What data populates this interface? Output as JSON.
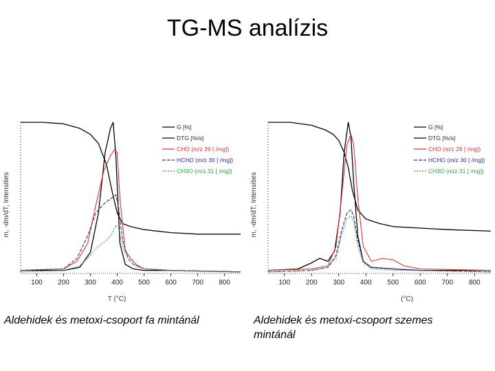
{
  "title": "TG-MS analízis",
  "captions": [
    "Aldehidek és metoxi-csoport fa mintánál",
    "Aldehidek és metoxi-csoport szemes mintánál"
  ],
  "colors": {
    "G": "#000000",
    "DTG": "#000000",
    "CHO": "#e03030",
    "HCHO": "#2a2a8a",
    "CH3O": "#2e9e3e",
    "axis": "#000000"
  },
  "chart_data": [
    {
      "type": "line",
      "title": "",
      "xlabel": "T (°C)",
      "ylabel": "m, -dm/dT, Intensities",
      "xlim": [
        40,
        860
      ],
      "ylim": [
        0,
        100
      ],
      "xticks": [
        100,
        200,
        300,
        400,
        500,
        600,
        700,
        800
      ],
      "legend": [
        "G [%]",
        "DTG [%/s]",
        "CHO (m/z 29 [ /mg])",
        "HCHO (m/z 30 [ /mg])",
        "CH3O (m/z 31 [ /mg])"
      ],
      "series": [
        {
          "name": "G [%]",
          "key": "G",
          "x": [
            40,
            120,
            200,
            260,
            300,
            330,
            360,
            380,
            400,
            420,
            450,
            500,
            600,
            700,
            860
          ],
          "y": [
            100,
            100,
            99,
            96,
            92,
            86,
            72,
            55,
            40,
            33,
            31,
            29,
            27,
            26,
            26
          ]
        },
        {
          "name": "DTG [%/s]",
          "key": "DTG",
          "x": [
            40,
            200,
            260,
            300,
            330,
            355,
            375,
            385,
            395,
            410,
            430,
            460,
            500,
            600,
            860
          ],
          "y": [
            2,
            2,
            4,
            14,
            40,
            80,
            96,
            100,
            78,
            20,
            6,
            3,
            2,
            2,
            1
          ]
        },
        {
          "name": "CHO (m/z 29 [ /mg])",
          "key": "CHO",
          "x": [
            40,
            200,
            250,
            290,
            320,
            350,
            375,
            390,
            400,
            410,
            430,
            450,
            470,
            500,
            600,
            860
          ],
          "y": [
            2,
            3,
            8,
            20,
            45,
            68,
            78,
            82,
            80,
            50,
            15,
            10,
            6,
            3,
            2,
            1
          ]
        },
        {
          "name": "HCHO (m/z 30 [ /mg])",
          "key": "HCHO",
          "x": [
            40,
            200,
            250,
            290,
            320,
            350,
            380,
            395,
            405,
            420,
            440,
            460,
            500,
            600,
            860
          ],
          "y": [
            2,
            3,
            10,
            25,
            40,
            46,
            50,
            52,
            44,
            22,
            10,
            6,
            3,
            2,
            1
          ]
        },
        {
          "name": "CH3O (m/z 31 [ /mg])",
          "key": "CH3O",
          "x": [
            40,
            200,
            260,
            300,
            330,
            360,
            380,
            395,
            405,
            420,
            440,
            460,
            500,
            600,
            860
          ],
          "y": [
            1,
            2,
            5,
            12,
            18,
            22,
            26,
            32,
            30,
            18,
            10,
            6,
            3,
            2,
            1
          ]
        }
      ]
    },
    {
      "type": "line",
      "title": "",
      "xlabel": "(°C)",
      "ylabel": "m, -dm/dT, Intensities",
      "xlim": [
        40,
        860
      ],
      "ylim": [
        0,
        100
      ],
      "xticks": [
        100,
        200,
        300,
        400,
        500,
        600,
        700,
        800
      ],
      "legend": [
        "G [%]",
        "DTG [%/s]",
        "CHO (m/z 29 [ /mg])",
        "HCHO (m/z 30 [ /mg])",
        "CH3O (m/z 31 [ /mg])"
      ],
      "series": [
        {
          "name": "G [%]",
          "key": "G",
          "x": [
            40,
            120,
            200,
            250,
            280,
            300,
            320,
            335,
            350,
            370,
            400,
            450,
            500,
            600,
            700,
            860
          ],
          "y": [
            100,
            100,
            98,
            95,
            92,
            88,
            80,
            70,
            55,
            42,
            36,
            33,
            31,
            30,
            29,
            28
          ]
        },
        {
          "name": "DTG [%/s]",
          "key": "DTG",
          "x": [
            40,
            150,
            200,
            230,
            260,
            285,
            305,
            320,
            335,
            345,
            355,
            370,
            390,
            420,
            500,
            600,
            860
          ],
          "y": [
            2,
            3,
            7,
            10,
            8,
            15,
            40,
            80,
            100,
            90,
            60,
            25,
            8,
            4,
            3,
            2,
            2
          ]
        },
        {
          "name": "CHO (m/z 29 [ /mg])",
          "key": "CHO",
          "x": [
            40,
            200,
            260,
            290,
            310,
            330,
            345,
            355,
            370,
            390,
            420,
            460,
            500,
            540,
            600,
            860
          ],
          "y": [
            2,
            3,
            5,
            18,
            50,
            85,
            92,
            85,
            50,
            18,
            8,
            10,
            9,
            5,
            3,
            2
          ]
        },
        {
          "name": "HCHO (m/z 30 [ /mg])",
          "key": "HCHO",
          "x": [
            40,
            200,
            260,
            290,
            310,
            330,
            345,
            355,
            370,
            390,
            420,
            500,
            600,
            860
          ],
          "y": [
            1,
            2,
            4,
            12,
            28,
            40,
            42,
            38,
            22,
            8,
            4,
            3,
            2,
            1
          ]
        },
        {
          "name": "CH3O (m/z 31 [ /mg])",
          "key": "CH3O",
          "x": [
            40,
            200,
            260,
            290,
            310,
            330,
            345,
            355,
            370,
            390,
            420,
            500,
            600,
            860
          ],
          "y": [
            1,
            2,
            4,
            10,
            25,
            36,
            38,
            34,
            18,
            7,
            3,
            2,
            2,
            1
          ]
        }
      ]
    }
  ]
}
